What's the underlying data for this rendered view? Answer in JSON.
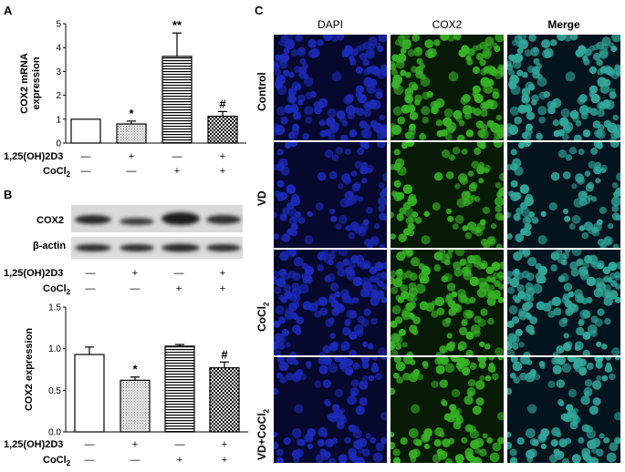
{
  "panels": {
    "a": "A",
    "b": "B",
    "c": "C"
  },
  "treatment_rows": {
    "vd_label": "1,25(OH)2D3",
    "cocl2_label": "CoCl2",
    "vd_marks": [
      "—",
      "+",
      "—",
      "+"
    ],
    "cocl2_marks": [
      "—",
      "—",
      "+",
      "+"
    ]
  },
  "chart_data": [
    {
      "type": "bar",
      "panel": "A",
      "categories": [
        "1",
        "2",
        "3",
        "4"
      ],
      "values": [
        1.0,
        0.8,
        3.63,
        1.12
      ],
      "errors": [
        0.0,
        0.12,
        0.98,
        0.2
      ],
      "annotations": [
        "",
        "*",
        "**",
        "#"
      ],
      "ylabel": "COX2 mRNA expression",
      "ylim": [
        0,
        5
      ],
      "yticks": [
        "0",
        "1",
        "2",
        "3",
        "4",
        "5"
      ],
      "patterns": [
        "white",
        "dots",
        "hlines",
        "checker"
      ]
    },
    {
      "type": "bar",
      "panel": "B",
      "categories": [
        "1",
        "2",
        "3",
        "4"
      ],
      "values": [
        0.93,
        0.62,
        1.03,
        0.77
      ],
      "errors": [
        0.09,
        0.04,
        0.02,
        0.07
      ],
      "annotations": [
        "",
        "*",
        "",
        "#"
      ],
      "ylabel": "COX2 expression",
      "ylim": [
        0,
        1.5
      ],
      "yticks": [
        "0.0",
        "0.5",
        "1.0",
        "1.5"
      ],
      "patterns": [
        "white",
        "dots",
        "hlines",
        "checker"
      ]
    }
  ],
  "blot": {
    "cox2": "COX2",
    "actin": "β-actin"
  },
  "micro": {
    "columns": [
      "DAPI",
      "COX2",
      "Merge"
    ],
    "rows": [
      "Control",
      "VD",
      "CoCl2",
      "VD+CoCl2"
    ],
    "colors": {
      "dapi": "#1e2fc8",
      "cox2": "#3dc42a",
      "merge": "#38b8a8"
    }
  }
}
